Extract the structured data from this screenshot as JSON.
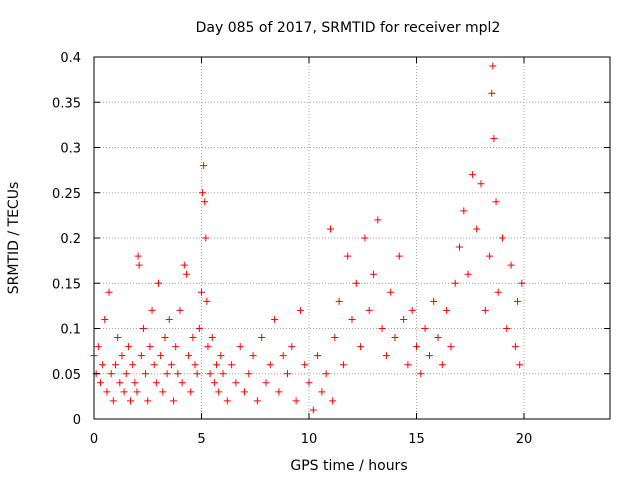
{
  "chart_data": {
    "type": "scatter",
    "title": "Day 085 of 2017, SRMTID for receiver mpl2",
    "xlabel": "GPS time / hours",
    "ylabel": "SRMTID / TECUs",
    "xlim": [
      0,
      24
    ],
    "ylim": [
      0,
      0.4
    ],
    "xticks": [
      0,
      5,
      10,
      15,
      20
    ],
    "yticks": [
      0,
      0.05,
      0.1,
      0.15,
      0.2,
      0.25,
      0.3,
      0.35,
      0.4
    ],
    "xtick_labels": [
      "0",
      "5",
      "10",
      "15",
      "20"
    ],
    "ytick_labels": [
      "0",
      "0.05",
      "0.1",
      "0.15",
      "0.2",
      "0.25",
      "0.3",
      "0.35",
      "0.4"
    ],
    "grid": true,
    "marker": "+",
    "color": "#ff0000",
    "series": [
      {
        "name": "SRMTID",
        "points": [
          [
            0.0,
            0.07
          ],
          [
            0.1,
            0.05
          ],
          [
            0.2,
            0.08
          ],
          [
            0.3,
            0.04
          ],
          [
            0.4,
            0.06
          ],
          [
            0.5,
            0.11
          ],
          [
            0.6,
            0.03
          ],
          [
            0.7,
            0.14
          ],
          [
            0.8,
            0.05
          ],
          [
            0.9,
            0.02
          ],
          [
            1.0,
            0.06
          ],
          [
            1.1,
            0.09
          ],
          [
            1.2,
            0.04
          ],
          [
            1.3,
            0.07
          ],
          [
            1.4,
            0.03
          ],
          [
            1.5,
            0.05
          ],
          [
            1.6,
            0.08
          ],
          [
            1.7,
            0.02
          ],
          [
            1.8,
            0.06
          ],
          [
            1.9,
            0.04
          ],
          [
            2.0,
            0.03
          ],
          [
            2.05,
            0.18
          ],
          [
            2.1,
            0.17
          ],
          [
            2.2,
            0.07
          ],
          [
            2.3,
            0.1
          ],
          [
            2.4,
            0.05
          ],
          [
            2.5,
            0.02
          ],
          [
            2.6,
            0.08
          ],
          [
            2.7,
            0.12
          ],
          [
            2.8,
            0.06
          ],
          [
            2.9,
            0.04
          ],
          [
            3.0,
            0.15
          ],
          [
            3.1,
            0.07
          ],
          [
            3.2,
            0.03
          ],
          [
            3.3,
            0.09
          ],
          [
            3.4,
            0.05
          ],
          [
            3.5,
            0.11
          ],
          [
            3.6,
            0.06
          ],
          [
            3.7,
            0.02
          ],
          [
            3.8,
            0.08
          ],
          [
            3.9,
            0.05
          ],
          [
            4.0,
            0.12
          ],
          [
            4.1,
            0.04
          ],
          [
            4.2,
            0.17
          ],
          [
            4.3,
            0.16
          ],
          [
            4.4,
            0.07
          ],
          [
            4.5,
            0.03
          ],
          [
            4.6,
            0.09
          ],
          [
            4.7,
            0.06
          ],
          [
            4.8,
            0.05
          ],
          [
            4.9,
            0.1
          ],
          [
            5.0,
            0.14
          ],
          [
            5.05,
            0.25
          ],
          [
            5.1,
            0.28
          ],
          [
            5.15,
            0.24
          ],
          [
            5.2,
            0.2
          ],
          [
            5.25,
            0.13
          ],
          [
            5.3,
            0.08
          ],
          [
            5.4,
            0.05
          ],
          [
            5.5,
            0.09
          ],
          [
            5.6,
            0.04
          ],
          [
            5.7,
            0.06
          ],
          [
            5.8,
            0.03
          ],
          [
            5.9,
            0.07
          ],
          [
            6.0,
            0.05
          ],
          [
            6.2,
            0.02
          ],
          [
            6.4,
            0.06
          ],
          [
            6.6,
            0.04
          ],
          [
            6.8,
            0.08
          ],
          [
            7.0,
            0.03
          ],
          [
            7.2,
            0.05
          ],
          [
            7.4,
            0.07
          ],
          [
            7.6,
            0.02
          ],
          [
            7.8,
            0.09
          ],
          [
            8.0,
            0.04
          ],
          [
            8.2,
            0.06
          ],
          [
            8.4,
            0.11
          ],
          [
            8.6,
            0.03
          ],
          [
            8.8,
            0.07
          ],
          [
            9.0,
            0.05
          ],
          [
            9.2,
            0.08
          ],
          [
            9.4,
            0.02
          ],
          [
            9.6,
            0.12
          ],
          [
            9.8,
            0.06
          ],
          [
            10.0,
            0.04
          ],
          [
            10.2,
            0.01
          ],
          [
            10.4,
            0.07
          ],
          [
            10.6,
            0.03
          ],
          [
            10.8,
            0.05
          ],
          [
            11.0,
            0.21
          ],
          [
            11.1,
            0.02
          ],
          [
            11.2,
            0.09
          ],
          [
            11.4,
            0.13
          ],
          [
            11.6,
            0.06
          ],
          [
            11.8,
            0.18
          ],
          [
            12.0,
            0.11
          ],
          [
            12.2,
            0.15
          ],
          [
            12.4,
            0.08
          ],
          [
            12.6,
            0.2
          ],
          [
            12.8,
            0.12
          ],
          [
            13.0,
            0.16
          ],
          [
            13.2,
            0.22
          ],
          [
            13.4,
            0.1
          ],
          [
            13.6,
            0.07
          ],
          [
            13.8,
            0.14
          ],
          [
            14.0,
            0.09
          ],
          [
            14.2,
            0.18
          ],
          [
            14.4,
            0.11
          ],
          [
            14.6,
            0.06
          ],
          [
            14.8,
            0.12
          ],
          [
            15.0,
            0.08
          ],
          [
            15.2,
            0.05
          ],
          [
            15.4,
            0.1
          ],
          [
            15.6,
            0.07
          ],
          [
            15.8,
            0.13
          ],
          [
            16.0,
            0.09
          ],
          [
            16.2,
            0.06
          ],
          [
            16.4,
            0.12
          ],
          [
            16.6,
            0.08
          ],
          [
            16.8,
            0.15
          ],
          [
            17.0,
            0.19
          ],
          [
            17.2,
            0.23
          ],
          [
            17.4,
            0.16
          ],
          [
            17.6,
            0.27
          ],
          [
            17.8,
            0.21
          ],
          [
            18.0,
            0.26
          ],
          [
            18.2,
            0.12
          ],
          [
            18.4,
            0.18
          ],
          [
            18.5,
            0.36
          ],
          [
            18.55,
            0.39
          ],
          [
            18.6,
            0.31
          ],
          [
            18.7,
            0.24
          ],
          [
            18.8,
            0.14
          ],
          [
            19.0,
            0.2
          ],
          [
            19.2,
            0.1
          ],
          [
            19.4,
            0.17
          ],
          [
            19.6,
            0.08
          ],
          [
            19.7,
            0.13
          ],
          [
            19.8,
            0.06
          ],
          [
            19.9,
            0.15
          ]
        ]
      }
    ]
  }
}
